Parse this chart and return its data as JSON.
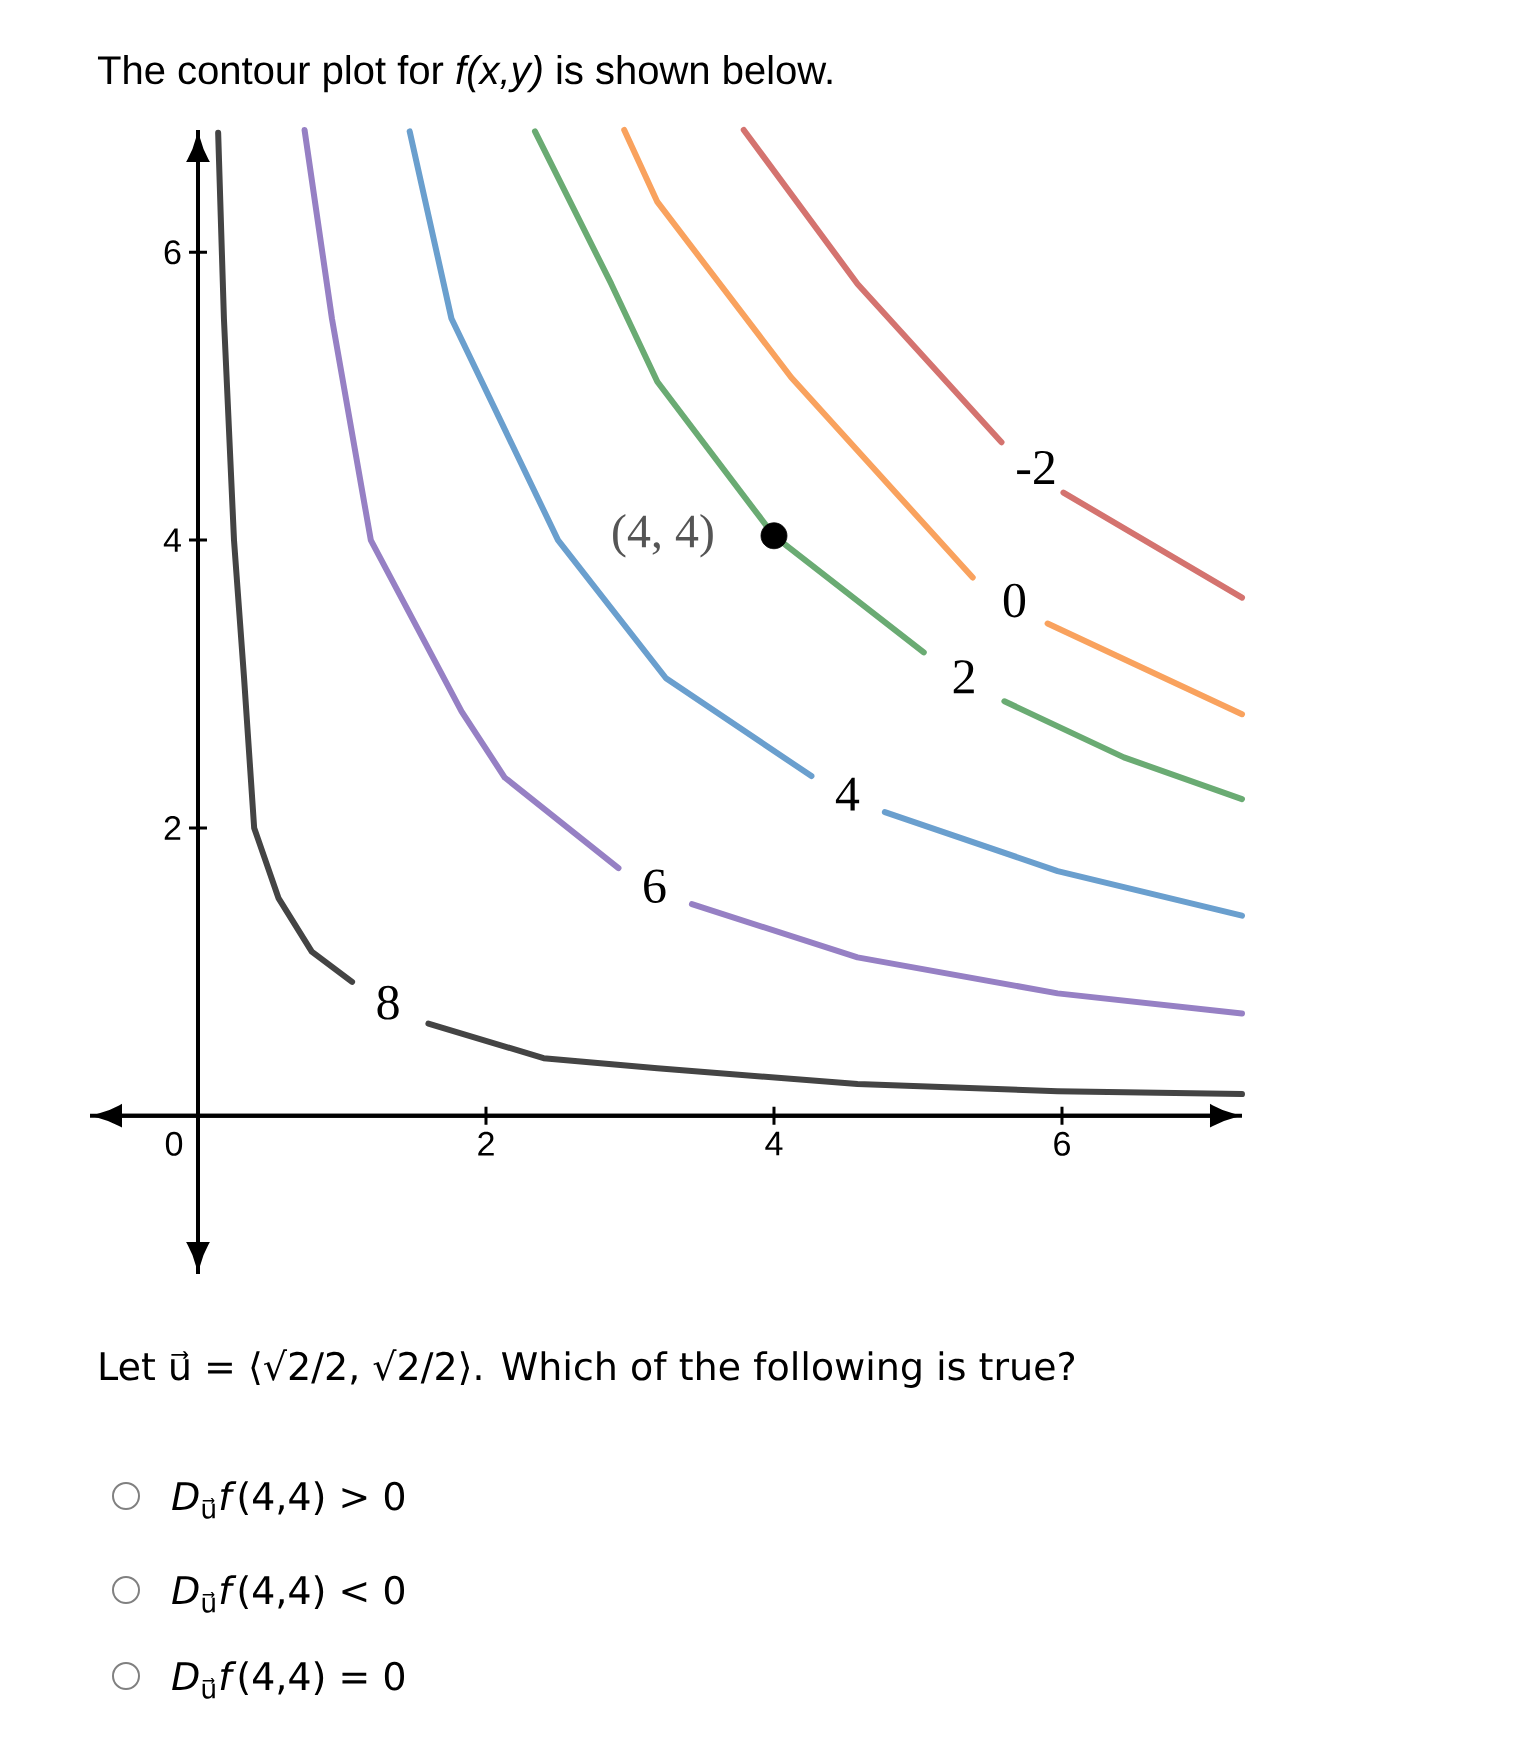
{
  "chart_data": {
    "type": "line",
    "title": "The contour plot for *f(x,y)* is shown below.",
    "xlim": [
      -0.75,
      7.25
    ],
    "ylim": [
      -1.1,
      6.85
    ],
    "xticks": [
      0,
      2,
      4,
      6
    ],
    "yticks": [
      2,
      4,
      6
    ],
    "series": [
      {
        "name": "-2",
        "color": "#d4736f",
        "x": [
          3.79,
          4.58,
          5.58,
          5.82,
          6.01,
          7.25
        ],
        "values": [
          6.85,
          5.78,
          4.68,
          null,
          4.33,
          3.6
        ]
      },
      {
        "name": "0",
        "color": "#f9a25e",
        "x": [
          2.96,
          3.19,
          4.12,
          5.38,
          5.67,
          5.9,
          7.25
        ],
        "values": [
          6.85,
          6.35,
          5.13,
          3.74,
          null,
          3.42,
          2.79
        ]
      },
      {
        "name": "2",
        "color": "#6aab73",
        "x": [
          2.34,
          2.87,
          3.19,
          4.0,
          5.04,
          5.32,
          5.6,
          6.43,
          7.25
        ],
        "values": [
          6.84,
          5.78,
          5.1,
          4.03,
          3.22,
          null,
          2.88,
          2.49,
          2.2
        ]
      },
      {
        "name": "4",
        "color": "#6a9fce",
        "x": [
          1.47,
          1.76,
          2.5,
          3.25,
          4.26,
          4.51,
          4.77,
          5.97,
          7.25
        ],
        "values": [
          6.84,
          5.54,
          4.0,
          3.04,
          2.36,
          null,
          2.11,
          1.7,
          1.39
        ]
      },
      {
        "name": "6",
        "color": "#9680c4",
        "x": [
          0.74,
          0.93,
          1.2,
          1.83,
          2.13,
          2.92,
          3.17,
          3.43,
          4.58,
          5.97,
          7.25
        ],
        "values": [
          6.85,
          5.54,
          4.0,
          2.81,
          2.35,
          1.72,
          null,
          1.47,
          1.1,
          0.85,
          0.71
        ]
      },
      {
        "name": "8",
        "color": "#444444",
        "x": [
          0.14,
          0.18,
          0.25,
          0.32,
          0.39,
          0.56,
          0.79,
          1.07,
          1.32,
          1.6,
          2.4,
          3.19,
          4.58,
          5.97,
          7.25
        ],
        "values": [
          6.83,
          5.54,
          4.0,
          3.04,
          2.0,
          1.51,
          1.14,
          0.93,
          null,
          0.64,
          0.4,
          0.33,
          0.22,
          0.17,
          0.15
        ]
      },
      {
        "type": "scatter",
        "marker": "circle",
        "color": "#000000",
        "x": [
          4.0
        ],
        "values": [
          4.03
        ]
      }
    ],
    "annotations": [
      {
        "text": "(4, 4)",
        "x": 4,
        "y": 4.03
      },
      "Let u⃗ = ⟨√2/2, √2/2⟩. Which of the following is true?",
      "*D*$_{u⃗}$*f*(4,4) > 0",
      "*D*$_{u⃗}$*f*(4,4) < 0",
      "*D*$_{u⃗}$*f*(4,4) = 0"
    ]
  }
}
